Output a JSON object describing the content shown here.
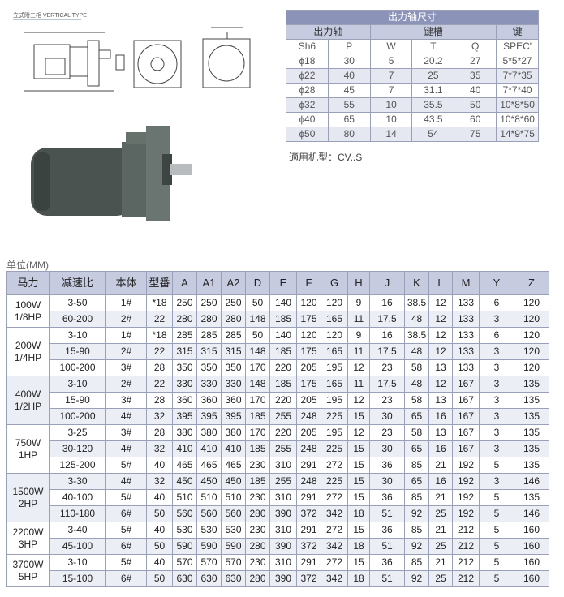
{
  "drawing_label": "立式附三相 VERTICAL TYPE",
  "shaft_table": {
    "title": "出力轴尺寸",
    "group_headers": [
      "出力轴",
      "键槽",
      "键"
    ],
    "columns": [
      "Sh6",
      "P",
      "W",
      "T",
      "Q",
      "SPEC'"
    ],
    "rows": [
      [
        "ɸ18",
        30,
        5,
        20.2,
        27,
        "5*5*27"
      ],
      [
        "ɸ22",
        40,
        7,
        25,
        35,
        "7*7*35"
      ],
      [
        "ɸ28",
        45,
        7,
        31.1,
        40,
        "7*7*40"
      ],
      [
        "ɸ32",
        55,
        10,
        35.5,
        50,
        "10*8*50"
      ],
      [
        "ɸ40",
        65,
        10,
        43.5,
        60,
        "10*8*60"
      ],
      [
        "ɸ50",
        80,
        14,
        54,
        75,
        "14*9*75"
      ]
    ]
  },
  "applicable": "適用机型：CV..S",
  "main_table": {
    "unit": "单位(MM)",
    "columns": [
      "马力",
      "减速比",
      "本体",
      "型番",
      "A",
      "A1",
      "A2",
      "D",
      "E",
      "F",
      "G",
      "H",
      "J",
      "K",
      "L",
      "M",
      "Y",
      "Z"
    ],
    "groups": [
      {
        "power": [
          "100W",
          "1/8HP"
        ],
        "rows": [
          [
            "3-50",
            "1#",
            "*18",
            250,
            250,
            250,
            50,
            140,
            120,
            120,
            9,
            16,
            38.5,
            12,
            133,
            6,
            120
          ],
          [
            "60-200",
            "2#",
            22,
            280,
            280,
            280,
            148,
            185,
            175,
            165,
            11,
            17.5,
            48,
            12,
            133,
            3,
            120
          ]
        ]
      },
      {
        "power": [
          "200W",
          "1/4HP"
        ],
        "rows": [
          [
            "3-10",
            "1#",
            "*18",
            285,
            285,
            285,
            50,
            140,
            120,
            120,
            9,
            16,
            38.5,
            12,
            133,
            6,
            120
          ],
          [
            "15-90",
            "2#",
            22,
            315,
            315,
            315,
            148,
            185,
            175,
            165,
            11,
            17.5,
            48,
            12,
            133,
            3,
            120
          ],
          [
            "100-200",
            "3#",
            28,
            350,
            350,
            350,
            170,
            220,
            205,
            195,
            12,
            23,
            58,
            13,
            133,
            3,
            120
          ]
        ]
      },
      {
        "power": [
          "400W",
          "1/2HP"
        ],
        "rows": [
          [
            "3-10",
            "2#",
            22,
            330,
            330,
            330,
            148,
            185,
            175,
            165,
            11,
            17.5,
            48,
            12,
            167,
            3,
            135
          ],
          [
            "15-90",
            "3#",
            28,
            360,
            360,
            360,
            170,
            220,
            205,
            195,
            12,
            23,
            58,
            13,
            167,
            3,
            135
          ],
          [
            "100-200",
            "4#",
            32,
            395,
            395,
            395,
            185,
            255,
            248,
            225,
            15,
            30,
            65,
            16,
            167,
            3,
            135
          ]
        ]
      },
      {
        "power": [
          "750W",
          "1HP"
        ],
        "rows": [
          [
            "3-25",
            "3#",
            28,
            380,
            380,
            380,
            170,
            220,
            205,
            195,
            12,
            23,
            58,
            13,
            167,
            3,
            135
          ],
          [
            "30-120",
            "4#",
            32,
            410,
            410,
            410,
            185,
            255,
            248,
            225,
            15,
            30,
            65,
            16,
            167,
            3,
            135
          ],
          [
            "125-200",
            "5#",
            40,
            465,
            465,
            465,
            230,
            310,
            291,
            272,
            15,
            36,
            85,
            21,
            192,
            5,
            135
          ]
        ]
      },
      {
        "power": [
          "1500W",
          "2HP"
        ],
        "rows": [
          [
            "3-30",
            "4#",
            32,
            450,
            450,
            450,
            185,
            255,
            248,
            225,
            15,
            30,
            65,
            16,
            192,
            3,
            146
          ],
          [
            "40-100",
            "5#",
            40,
            510,
            510,
            510,
            230,
            310,
            291,
            272,
            15,
            36,
            85,
            21,
            192,
            5,
            135
          ],
          [
            "110-180",
            "6#",
            50,
            560,
            560,
            560,
            280,
            390,
            372,
            342,
            18,
            51,
            92,
            25,
            192,
            5,
            146
          ]
        ]
      },
      {
        "power": [
          "2200W",
          "3HP"
        ],
        "rows": [
          [
            "3-40",
            "5#",
            40,
            530,
            530,
            530,
            230,
            310,
            291,
            272,
            15,
            36,
            85,
            21,
            212,
            5,
            160
          ],
          [
            "45-100",
            "6#",
            50,
            590,
            590,
            590,
            280,
            390,
            372,
            342,
            18,
            51,
            92,
            25,
            212,
            5,
            160
          ]
        ]
      },
      {
        "power": [
          "3700W",
          "5HP"
        ],
        "rows": [
          [
            "3-10",
            "5#",
            40,
            570,
            570,
            570,
            230,
            310,
            291,
            272,
            15,
            36,
            85,
            21,
            212,
            5,
            160
          ],
          [
            "15-100",
            "6#",
            50,
            630,
            630,
            630,
            280,
            390,
            372,
            342,
            18,
            51,
            92,
            25,
            212,
            5,
            160
          ]
        ]
      }
    ]
  }
}
